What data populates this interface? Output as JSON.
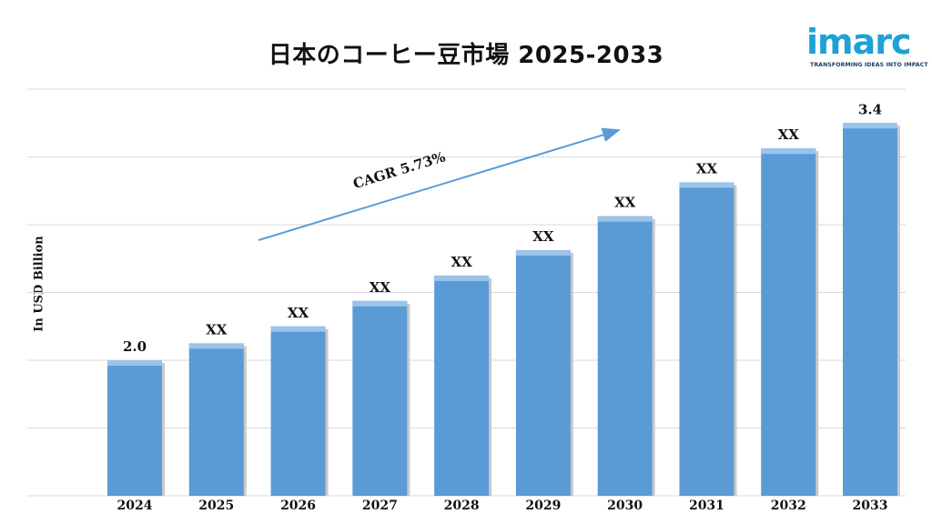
{
  "title": "日本のコーヒー豆市場 2025-2033",
  "logo": {
    "word": "imarc",
    "tagline": "TRANSFORMING IDEAS INTO IMPACT",
    "color": "#1da1d6"
  },
  "cagr_label": "CAGR 5.73%",
  "colors": {
    "bar": "#5b9bd5",
    "bar_top": "#9cc3ea",
    "grid": "#d9d9d9",
    "arrow": "#5b9bd5"
  },
  "chart_data": {
    "type": "bar",
    "title": "日本のコーヒー豆市場 2025-2033",
    "xlabel": "",
    "ylabel": "In USD Billion",
    "categories": [
      "2024",
      "2025",
      "2026",
      "2027",
      "2028",
      "2029",
      "2030",
      "2031",
      "2032",
      "2033"
    ],
    "values": [
      2.0,
      2.1,
      2.2,
      2.35,
      2.5,
      2.65,
      2.85,
      3.05,
      3.25,
      3.4
    ],
    "data_labels": [
      "2.0",
      "XX",
      "XX",
      "XX",
      "XX",
      "XX",
      "XX",
      "XX",
      "XX",
      "3.4"
    ],
    "ylim": [
      1.2,
      3.6
    ],
    "grid": true,
    "legend": "none"
  }
}
